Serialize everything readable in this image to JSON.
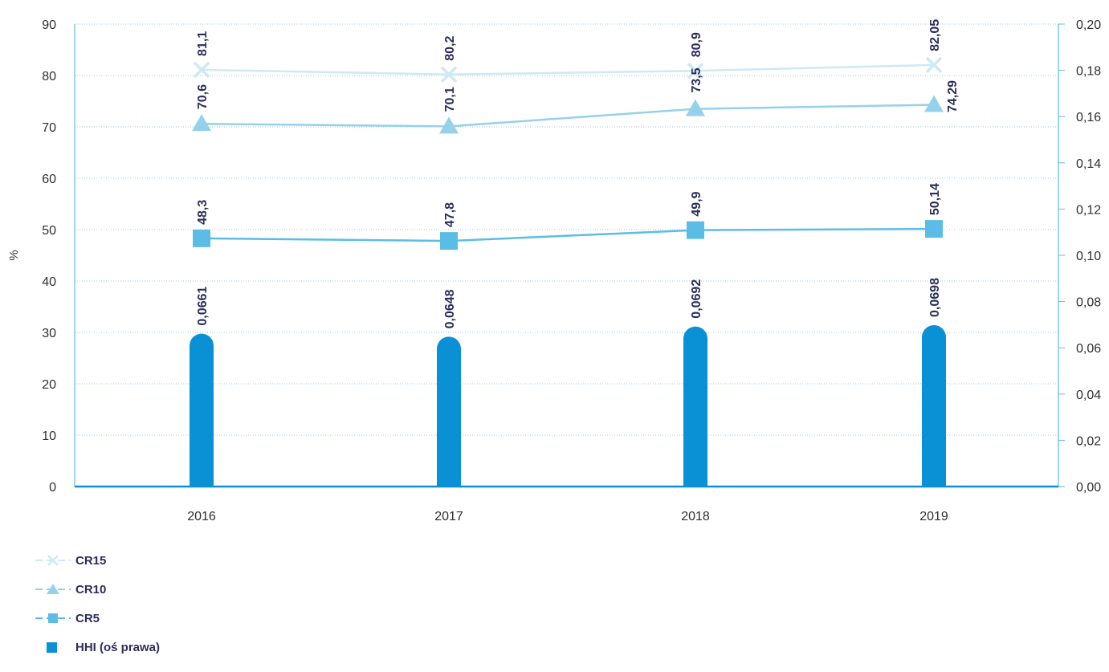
{
  "chart_data": {
    "type": "line",
    "categories": [
      "2016",
      "2017",
      "2018",
      "2019"
    ],
    "ylabel": "%",
    "ylim": [
      0,
      90
    ],
    "y_ticks": [
      "0",
      "10",
      "20",
      "30",
      "40",
      "50",
      "60",
      "70",
      "80",
      "90"
    ],
    "y2lim": [
      0,
      0.2
    ],
    "y2_ticks": [
      "0,00",
      "0,02",
      "0,04",
      "0,06",
      "0,08",
      "0,10",
      "0,12",
      "0,14",
      "0,16",
      "0,18",
      "0,20"
    ],
    "grid": true,
    "legend_position": "bottom-left",
    "series": [
      {
        "name": "CR15",
        "type": "line",
        "marker": "x",
        "axis": "left",
        "color": "#cde9f4",
        "values": [
          81.1,
          80.2,
          80.9,
          82.05
        ],
        "labels": [
          "81,1",
          "80,2",
          "80,9",
          "82,05"
        ]
      },
      {
        "name": "CR10",
        "type": "line",
        "marker": "triangle",
        "axis": "left",
        "color": "#95d1ea",
        "values": [
          70.6,
          70.1,
          73.5,
          74.29
        ],
        "labels": [
          "70,6",
          "70,1",
          "73,5",
          "74,29"
        ]
      },
      {
        "name": "CR5",
        "type": "line",
        "marker": "square",
        "axis": "left",
        "color": "#5bbde6",
        "values": [
          48.3,
          47.8,
          49.9,
          50.14
        ],
        "labels": [
          "48,3",
          "47,8",
          "49,9",
          "50,14"
        ]
      },
      {
        "name": "HHI (oś prawa)",
        "type": "bar",
        "marker": "square",
        "axis": "right",
        "color": "#0a90d5",
        "values": [
          0.0661,
          0.0648,
          0.0692,
          0.0698
        ],
        "labels": [
          "0,0661",
          "0,0648",
          "0,0692",
          "0,0698"
        ]
      }
    ]
  }
}
